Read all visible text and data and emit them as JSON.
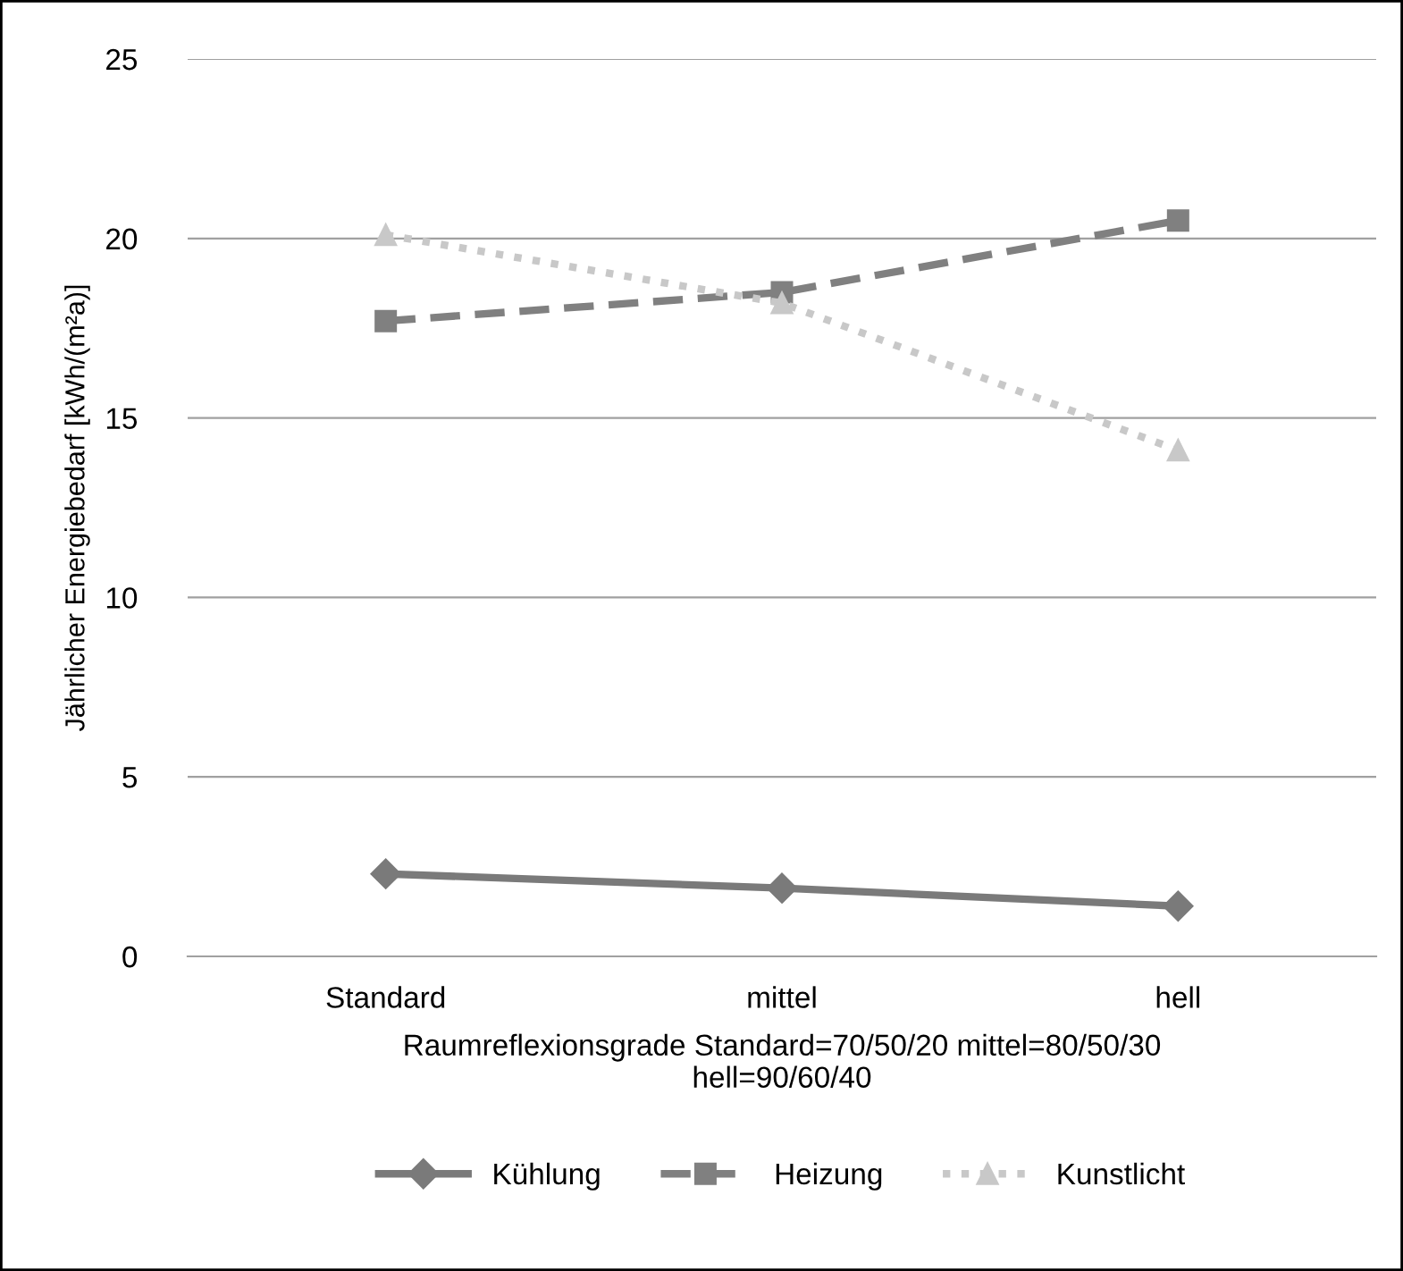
{
  "chart_data": {
    "type": "line",
    "xlabel": "Raumreflexionsgrade Standard=70/50/20 mittel=80/50/30\nhell=90/60/40",
    "ylabel": "Jährlicher Energiebedarf [kWh/(m²a)]",
    "categories": [
      "Standard",
      "mittel",
      "hell"
    ],
    "series": [
      {
        "name": "Kühlung",
        "color": "#7a7a7a",
        "values": [
          2.3,
          1.9,
          1.4
        ],
        "marker": "diamond",
        "line_style": "solid"
      },
      {
        "name": "Heizung",
        "color": "#808080",
        "values": [
          17.7,
          18.5,
          20.5
        ],
        "marker": "square",
        "line_style": "dashed"
      },
      {
        "name": "Kunstlicht",
        "color": "#c8c8c8",
        "values": [
          20.1,
          18.2,
          14.1
        ],
        "marker": "triangle",
        "line_style": "dotted"
      }
    ],
    "ylim": [
      0,
      25
    ],
    "yticks": [
      0,
      5,
      10,
      15,
      20,
      25
    ],
    "grid": "y",
    "legend": "bottom"
  }
}
